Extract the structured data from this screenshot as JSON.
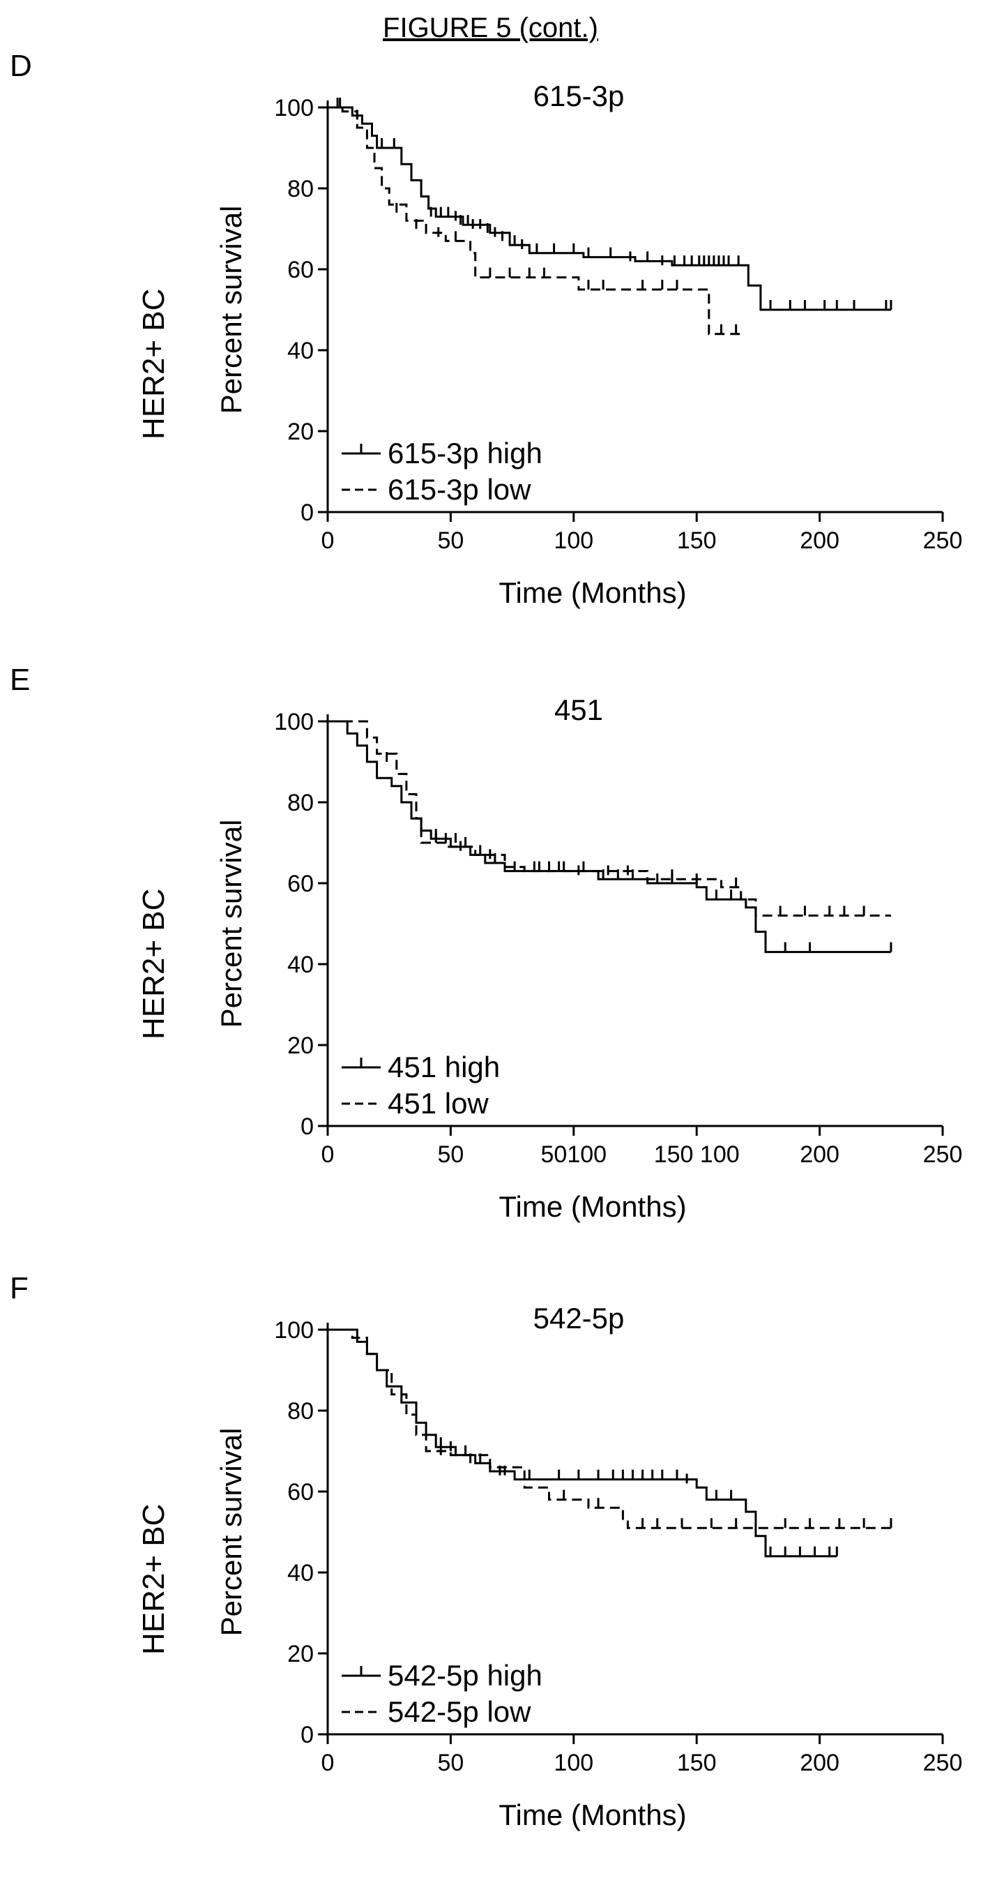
{
  "figure_title": "FIGURE 5 (cont.)",
  "panels": [
    {
      "letter": "D",
      "side_label": "HER2+ BC",
      "title": "615-3p",
      "ylabel": "Percent survival",
      "xlabel": "Time (Months)",
      "legend": [
        "615-3p high",
        "615-3p low"
      ]
    },
    {
      "letter": "E",
      "side_label": "HER2+ BC",
      "title": "451",
      "ylabel": "Percent survival",
      "xlabel": "Time (Months)",
      "legend": [
        "451 high",
        "451 low"
      ]
    },
    {
      "letter": "F",
      "side_label": "HER2+ BC",
      "title": "542-5p",
      "ylabel": "Percent survival",
      "xlabel": "Time (Months)",
      "legend": [
        "542-5p high",
        "542-5p low"
      ]
    }
  ],
  "chart_data": [
    {
      "type": "line",
      "title": "615-3p",
      "xlabel": "Time (Months)",
      "ylabel": "Percent survival",
      "xlim": [
        0,
        250
      ],
      "ylim": [
        0,
        100
      ],
      "x_ticks": [
        "0",
        "50",
        "100",
        "150",
        "200",
        "250"
      ],
      "y_ticks": [
        "0",
        "20",
        "40",
        "60",
        "80",
        "100"
      ],
      "legend_position": "bottom-left",
      "series": [
        {
          "name": "615-3p high",
          "style": "solid",
          "steps": [
            [
              0,
              100
            ],
            [
              10,
              98
            ],
            [
              14,
              96
            ],
            [
              18,
              93
            ],
            [
              20,
              90
            ],
            [
              30,
              86
            ],
            [
              34,
              82
            ],
            [
              38,
              78
            ],
            [
              41,
              75
            ],
            [
              44,
              73
            ],
            [
              55,
              71
            ],
            [
              66,
              69
            ],
            [
              74,
              66
            ],
            [
              82,
              64
            ],
            [
              104,
              63
            ],
            [
              125,
              62
            ],
            [
              140,
              61
            ],
            [
              160,
              61
            ],
            [
              171,
              56
            ],
            [
              176,
              50
            ],
            [
              229,
              50
            ]
          ],
          "censored": [
            [
              5,
              100
            ],
            [
              12,
              97
            ],
            [
              22,
              90
            ],
            [
              27,
              90
            ],
            [
              42,
              73
            ],
            [
              46,
              73
            ],
            [
              49,
              73
            ],
            [
              52,
              72
            ],
            [
              54,
              71
            ],
            [
              57,
              71
            ],
            [
              59,
              70
            ],
            [
              62,
              70
            ],
            [
              65,
              69
            ],
            [
              68,
              68
            ],
            [
              71,
              67
            ],
            [
              76,
              66
            ],
            [
              79,
              65
            ],
            [
              85,
              64
            ],
            [
              92,
              64
            ],
            [
              100,
              64
            ],
            [
              106,
              63
            ],
            [
              115,
              63
            ],
            [
              123,
              62
            ],
            [
              130,
              62
            ],
            [
              136,
              61
            ],
            [
              141,
              61
            ],
            [
              145,
              61
            ],
            [
              148,
              61
            ],
            [
              151,
              61
            ],
            [
              153,
              61
            ],
            [
              155,
              61
            ],
            [
              157,
              61
            ],
            [
              159,
              61
            ],
            [
              161,
              61
            ],
            [
              163,
              61
            ],
            [
              167,
              61
            ],
            [
              180,
              50
            ],
            [
              188,
              50
            ],
            [
              194,
              50
            ],
            [
              202,
              50
            ],
            [
              207,
              50
            ],
            [
              214,
              50
            ],
            [
              227,
              50
            ],
            [
              229,
              50
            ]
          ]
        },
        {
          "name": "615-3p low",
          "style": "dashed",
          "steps": [
            [
              0,
              100
            ],
            [
              6,
              99
            ],
            [
              12,
              95
            ],
            [
              16,
              90
            ],
            [
              19,
              85
            ],
            [
              22,
              80
            ],
            [
              25,
              76
            ],
            [
              32,
              72
            ],
            [
              40,
              69
            ],
            [
              48,
              67
            ],
            [
              58,
              64
            ],
            [
              60,
              58
            ],
            [
              68,
              58
            ],
            [
              96,
              58
            ],
            [
              102,
              55
            ],
            [
              118,
              55
            ],
            [
              145,
              55
            ],
            [
              155,
              44
            ],
            [
              168,
              44
            ]
          ],
          "censored": [
            [
              4,
              100
            ],
            [
              28,
              74
            ],
            [
              36,
              70
            ],
            [
              45,
              68
            ],
            [
              52,
              67
            ],
            [
              66,
              58
            ],
            [
              74,
              58
            ],
            [
              82,
              58
            ],
            [
              88,
              58
            ],
            [
              106,
              55
            ],
            [
              112,
              55
            ],
            [
              128,
              55
            ],
            [
              136,
              55
            ],
            [
              142,
              55
            ],
            [
              160,
              44
            ],
            [
              166,
              44
            ]
          ]
        }
      ]
    },
    {
      "type": "line",
      "title": "451",
      "xlabel": "Time (Months)",
      "ylabel": "Percent survival",
      "xlim": [
        0,
        250
      ],
      "ylim": [
        0,
        100
      ],
      "x_ticks": [
        "0",
        "50",
        "50100",
        "150 100",
        "200",
        "250"
      ],
      "y_ticks": [
        "0",
        "20",
        "40",
        "60",
        "80",
        "100"
      ],
      "legend_position": "bottom-left",
      "series": [
        {
          "name": "451 high",
          "style": "solid",
          "steps": [
            [
              0,
              100
            ],
            [
              8,
              97
            ],
            [
              12,
              94
            ],
            [
              16,
              90
            ],
            [
              20,
              86
            ],
            [
              26,
              84
            ],
            [
              30,
              80
            ],
            [
              34,
              76
            ],
            [
              38,
              73
            ],
            [
              42,
              71
            ],
            [
              50,
              69
            ],
            [
              58,
              67
            ],
            [
              64,
              65
            ],
            [
              72,
              63
            ],
            [
              110,
              61
            ],
            [
              130,
              60
            ],
            [
              150,
              59
            ],
            [
              154,
              56
            ],
            [
              170,
              54
            ],
            [
              174,
              48
            ],
            [
              178,
              43
            ],
            [
              229,
              43
            ]
          ],
          "censored": [
            [
              44,
              71
            ],
            [
              48,
              70
            ],
            [
              52,
              70
            ],
            [
              56,
              69
            ],
            [
              62,
              67
            ],
            [
              68,
              65
            ],
            [
              76,
              63
            ],
            [
              84,
              63
            ],
            [
              90,
              63
            ],
            [
              96,
              63
            ],
            [
              102,
              62
            ],
            [
              112,
              61
            ],
            [
              118,
              61
            ],
            [
              124,
              61
            ],
            [
              134,
              60
            ],
            [
              140,
              60
            ],
            [
              158,
              56
            ],
            [
              164,
              56
            ],
            [
              186,
              43
            ],
            [
              196,
              43
            ],
            [
              229,
              43
            ]
          ]
        },
        {
          "name": "451 low",
          "style": "dashed",
          "steps": [
            [
              0,
              100
            ],
            [
              12,
              100
            ],
            [
              16,
              96
            ],
            [
              20,
              92
            ],
            [
              28,
              87
            ],
            [
              32,
              82
            ],
            [
              36,
              76
            ],
            [
              38,
              70
            ],
            [
              48,
              69
            ],
            [
              60,
              67
            ],
            [
              72,
              64
            ],
            [
              80,
              63
            ],
            [
              130,
              61
            ],
            [
              160,
              59
            ],
            [
              168,
              56
            ],
            [
              174,
              52
            ],
            [
              229,
              52
            ]
          ],
          "censored": [
            [
              24,
              90
            ],
            [
              44,
              70
            ],
            [
              54,
              68
            ],
            [
              66,
              66
            ],
            [
              86,
              63
            ],
            [
              94,
              63
            ],
            [
              104,
              63
            ],
            [
              114,
              62
            ],
            [
              122,
              62
            ],
            [
              140,
              61
            ],
            [
              150,
              60
            ],
            [
              166,
              59
            ],
            [
              184,
              52
            ],
            [
              194,
              52
            ],
            [
              204,
              52
            ],
            [
              210,
              52
            ],
            [
              218,
              52
            ]
          ]
        }
      ]
    },
    {
      "type": "line",
      "title": "542-5p",
      "xlabel": "Time (Months)",
      "ylabel": "Percent survival",
      "xlim": [
        0,
        250
      ],
      "ylim": [
        0,
        100
      ],
      "x_ticks": [
        "0",
        "50",
        "100",
        "150",
        "200",
        "250"
      ],
      "y_ticks": [
        "0",
        "20",
        "40",
        "60",
        "80",
        "100"
      ],
      "legend_position": "bottom-left",
      "series": [
        {
          "name": "542-5p high",
          "style": "solid",
          "steps": [
            [
              0,
              100
            ],
            [
              8,
              100
            ],
            [
              12,
              97
            ],
            [
              16,
              94
            ],
            [
              20,
              90
            ],
            [
              24,
              86
            ],
            [
              30,
              82
            ],
            [
              36,
              77
            ],
            [
              40,
              74
            ],
            [
              44,
              71
            ],
            [
              52,
              69
            ],
            [
              60,
              67
            ],
            [
              66,
              65
            ],
            [
              76,
              63
            ],
            [
              140,
              63
            ],
            [
              150,
              61
            ],
            [
              154,
              58
            ],
            [
              170,
              55
            ],
            [
              174,
              49
            ],
            [
              178,
              44
            ],
            [
              207,
              44
            ]
          ],
          "censored": [
            [
              46,
              71
            ],
            [
              50,
              70
            ],
            [
              56,
              69
            ],
            [
              62,
              67
            ],
            [
              70,
              64
            ],
            [
              82,
              63
            ],
            [
              94,
              63
            ],
            [
              102,
              63
            ],
            [
              110,
              63
            ],
            [
              116,
              63
            ],
            [
              120,
              63
            ],
            [
              124,
              63
            ],
            [
              128,
              63
            ],
            [
              132,
              63
            ],
            [
              136,
              63
            ],
            [
              142,
              63
            ],
            [
              146,
              62
            ],
            [
              158,
              58
            ],
            [
              164,
              58
            ],
            [
              180,
              44
            ],
            [
              186,
              44
            ],
            [
              192,
              44
            ],
            [
              198,
              44
            ],
            [
              204,
              44
            ],
            [
              207,
              44
            ]
          ]
        },
        {
          "name": "542-5p low",
          "style": "dashed",
          "steps": [
            [
              0,
              100
            ],
            [
              10,
              98
            ],
            [
              16,
              94
            ],
            [
              20,
              90
            ],
            [
              26,
              84
            ],
            [
              32,
              79
            ],
            [
              36,
              74
            ],
            [
              40,
              70
            ],
            [
              50,
              69
            ],
            [
              66,
              66
            ],
            [
              80,
              61
            ],
            [
              90,
              58
            ],
            [
              106,
              56
            ],
            [
              120,
              53
            ],
            [
              122,
              51
            ],
            [
              180,
              51
            ],
            [
              229,
              51
            ]
          ],
          "censored": [
            [
              46,
              69
            ],
            [
              58,
              67
            ],
            [
              72,
              64
            ],
            [
              96,
              58
            ],
            [
              110,
              56
            ],
            [
              128,
              51
            ],
            [
              134,
              51
            ],
            [
              144,
              51
            ],
            [
              156,
              51
            ],
            [
              166,
              51
            ],
            [
              186,
              51
            ],
            [
              196,
              51
            ],
            [
              208,
              51
            ],
            [
              218,
              51
            ],
            [
              229,
              51
            ]
          ]
        }
      ]
    }
  ]
}
